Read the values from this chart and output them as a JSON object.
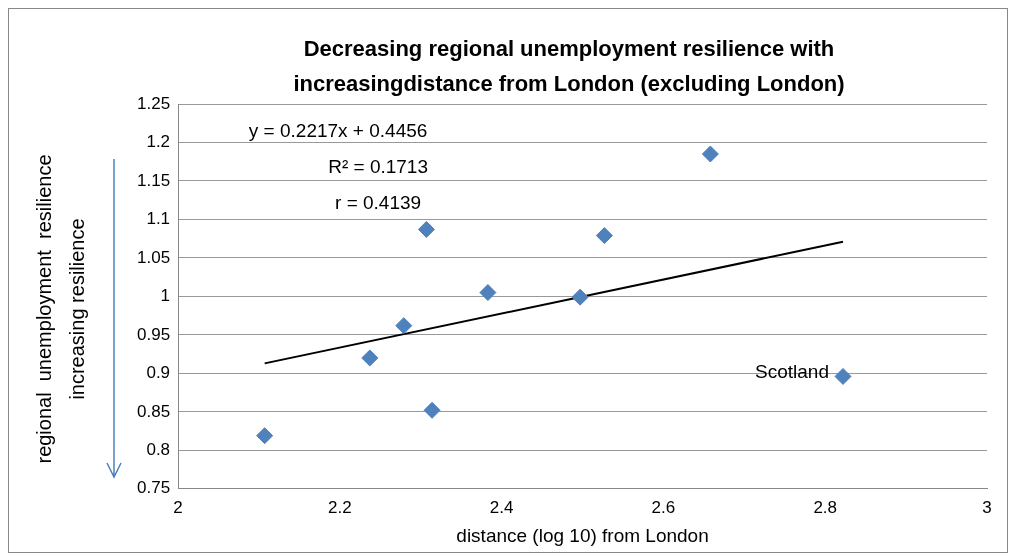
{
  "chart_data": {
    "type": "scatter",
    "title": "Decreasing regional unemployment resilience with increasingdistance from London (excluding London)",
    "xlabel": "distance (log 10) from London",
    "ylabel": "regional  unemployment  resilience",
    "annotations": [
      "y = 0.2217x + 0.4456",
      "R² = 0.1713",
      "r = 0.4139",
      {
        "text": "Scotland",
        "x": 2.822,
        "y": 0.896
      },
      "increasing resilience"
    ],
    "series": [
      {
        "type": "scatter",
        "color": "#4f81bd",
        "marker": "diamond",
        "x": [
          2.107,
          2.237,
          2.279,
          2.307,
          2.314,
          2.383,
          2.497,
          2.527,
          2.658,
          2.822
        ],
        "values": [
          0.819,
          0.92,
          0.962,
          1.087,
          0.852,
          1.005,
          0.999,
          1.079,
          1.185,
          0.896
        ]
      },
      {
        "type": "line",
        "color": "#000000",
        "marker": "none",
        "x": [
          2.107,
          2.822
        ],
        "values": [
          0.913,
          1.071
        ]
      }
    ],
    "xlim": [
      2,
      3
    ],
    "xticks": [
      2,
      2.2,
      2.4,
      2.6,
      2.8,
      3
    ],
    "ylim": [
      0.75,
      1.25
    ],
    "yticks": [
      0.75,
      0.8,
      0.85,
      0.9,
      0.95,
      1,
      1.05,
      1.1,
      1.15,
      1.2,
      1.25
    ],
    "grid": "y",
    "legend": false
  }
}
